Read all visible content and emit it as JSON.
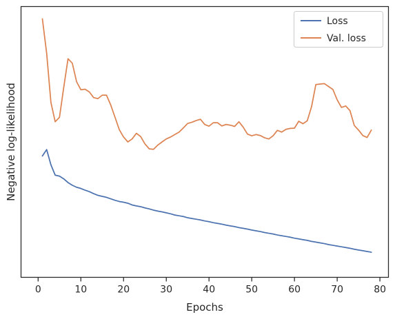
{
  "chart_data": {
    "type": "line",
    "xlabel": "Epochs",
    "ylabel": "Negative log-likelihood",
    "xlim": [
      -4,
      82
    ],
    "ylim": [
      -0.05,
      1.05
    ],
    "xticks": [
      0,
      10,
      20,
      30,
      40,
      50,
      60,
      70,
      80
    ],
    "yticks_labeled": false,
    "grid": false,
    "legend": "top-right",
    "series": [
      {
        "name": "Loss",
        "color": "#4c72b0",
        "x": [
          1,
          2,
          3,
          4,
          5,
          6,
          7,
          8,
          9,
          10,
          11,
          12,
          13,
          14,
          15,
          16,
          17,
          18,
          19,
          20,
          21,
          22,
          23,
          24,
          25,
          26,
          27,
          28,
          29,
          30,
          31,
          32,
          33,
          34,
          35,
          36,
          37,
          38,
          39,
          40,
          41,
          42,
          43,
          44,
          45,
          46,
          47,
          48,
          49,
          50,
          51,
          52,
          53,
          54,
          55,
          56,
          57,
          58,
          59,
          60,
          61,
          62,
          63,
          64,
          65,
          66,
          67,
          68,
          69,
          70,
          71,
          72,
          73,
          74,
          75,
          76,
          77,
          78
        ],
        "values": [
          0.443,
          0.469,
          0.407,
          0.365,
          0.361,
          0.35,
          0.335,
          0.324,
          0.316,
          0.311,
          0.304,
          0.298,
          0.29,
          0.283,
          0.279,
          0.275,
          0.269,
          0.263,
          0.258,
          0.255,
          0.251,
          0.244,
          0.24,
          0.237,
          0.232,
          0.228,
          0.223,
          0.219,
          0.216,
          0.212,
          0.208,
          0.203,
          0.2,
          0.197,
          0.192,
          0.189,
          0.186,
          0.183,
          0.179,
          0.176,
          0.172,
          0.169,
          0.166,
          0.162,
          0.159,
          0.156,
          0.152,
          0.149,
          0.146,
          0.142,
          0.139,
          0.136,
          0.132,
          0.129,
          0.126,
          0.122,
          0.119,
          0.116,
          0.113,
          0.109,
          0.106,
          0.103,
          0.1,
          0.096,
          0.093,
          0.09,
          0.087,
          0.083,
          0.08,
          0.077,
          0.074,
          0.071,
          0.068,
          0.064,
          0.061,
          0.058,
          0.055,
          0.052
        ]
      },
      {
        "name": "Val. loss",
        "color": "#dd8452",
        "x": [
          1,
          2,
          3,
          4,
          5,
          6,
          7,
          8,
          9,
          10,
          11,
          12,
          13,
          14,
          15,
          16,
          17,
          18,
          19,
          20,
          21,
          22,
          23,
          24,
          25,
          26,
          27,
          28,
          29,
          30,
          31,
          32,
          33,
          34,
          35,
          36,
          37,
          38,
          39,
          40,
          41,
          42,
          43,
          44,
          45,
          46,
          47,
          48,
          49,
          50,
          51,
          52,
          53,
          54,
          55,
          56,
          57,
          58,
          59,
          60,
          61,
          62,
          63,
          64,
          65,
          66,
          67,
          68,
          69,
          70,
          71,
          72,
          73,
          74,
          75,
          76,
          77,
          78
        ],
        "values": [
          1.0,
          0.86,
          0.66,
          0.582,
          0.6,
          0.722,
          0.838,
          0.82,
          0.745,
          0.712,
          0.714,
          0.703,
          0.68,
          0.676,
          0.69,
          0.69,
          0.65,
          0.6,
          0.55,
          0.52,
          0.5,
          0.512,
          0.535,
          0.522,
          0.492,
          0.472,
          0.47,
          0.487,
          0.5,
          0.512,
          0.52,
          0.53,
          0.54,
          0.557,
          0.575,
          0.58,
          0.587,
          0.592,
          0.571,
          0.564,
          0.578,
          0.578,
          0.565,
          0.571,
          0.568,
          0.563,
          0.582,
          0.56,
          0.532,
          0.525,
          0.53,
          0.526,
          0.517,
          0.512,
          0.525,
          0.547,
          0.54,
          0.551,
          0.555,
          0.556,
          0.584,
          0.574,
          0.586,
          0.643,
          0.733,
          0.735,
          0.737,
          0.725,
          0.713,
          0.671,
          0.64,
          0.646,
          0.627,
          0.567,
          0.548,
          0.526,
          0.518,
          0.548
        ]
      }
    ]
  }
}
